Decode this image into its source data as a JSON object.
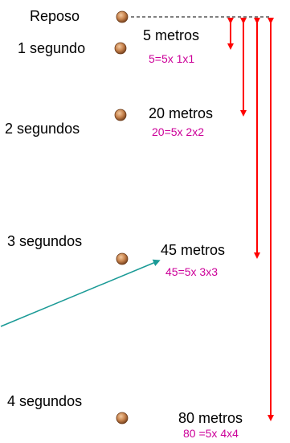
{
  "labels": {
    "rest": "Reposo",
    "t1": "1 segundo",
    "t2": "2 segundos",
    "t3": "3 segundos",
    "t4": "4 segundos"
  },
  "distances": {
    "d1": "5 metros",
    "d2": "20 metros",
    "d3": "45 metros",
    "d4": "80 metros"
  },
  "formulas": {
    "f1": "5=5x 1x1",
    "f2": "20=5x 2x2",
    "f3": "45=5x 3x3",
    "f4": "80 =5x 4x4"
  },
  "colors": {
    "arrow": "#ff0000",
    "formula": "#cc0099",
    "pointer": "#1a9a96",
    "ball": "#c8844e"
  },
  "icons": {
    "ball": "coin-ball-icon"
  }
}
